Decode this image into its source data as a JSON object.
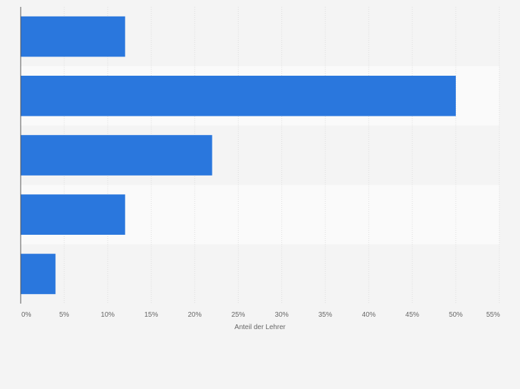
{
  "chart_data": {
    "type": "bar",
    "orientation": "horizontal",
    "categories": [
      "",
      "",
      "",
      "",
      ""
    ],
    "values": [
      12,
      50,
      22,
      12,
      4
    ],
    "unit": "%",
    "xlabel": "Anteil der Lehrer",
    "ylabel": "",
    "xlim": [
      0,
      55
    ],
    "xticks": [
      0,
      5,
      10,
      15,
      20,
      25,
      30,
      35,
      40,
      45,
      50,
      55
    ],
    "xtick_labels": [
      "0%",
      "5%",
      "10%",
      "15%",
      "20%",
      "25%",
      "30%",
      "35%",
      "40%",
      "45%",
      "50%",
      "55%"
    ],
    "grid": "vertical",
    "legend": "none",
    "colors": {
      "bar": "#2a77dd",
      "band_dark": "#f4f4f4",
      "band_light": "#fafafa",
      "grid": "#dcdcdc",
      "axis": "#555555",
      "text": "#666666"
    }
  }
}
